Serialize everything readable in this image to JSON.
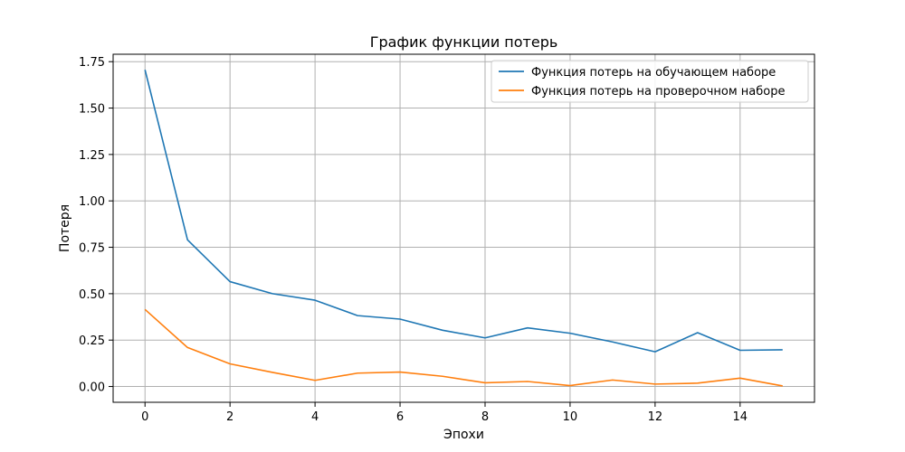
{
  "chart_data": {
    "type": "line",
    "title": "График функции потерь",
    "xlabel": "Эпохи",
    "ylabel": "Потеря",
    "x": [
      0,
      1,
      2,
      3,
      4,
      5,
      6,
      7,
      8,
      9,
      10,
      11,
      12,
      13,
      14,
      15
    ],
    "xlim": [
      -0.75,
      15.75
    ],
    "ylim": [
      -0.085,
      1.79
    ],
    "xticks": [
      "0",
      "2",
      "4",
      "6",
      "8",
      "10",
      "12",
      "14"
    ],
    "yticks": [
      "0.00",
      "0.25",
      "0.50",
      "0.75",
      "1.00",
      "1.25",
      "1.50",
      "1.75"
    ],
    "grid": true,
    "legend_position": "top-right",
    "series": [
      {
        "name": "Функция потерь на обучающем наборе",
        "color": "#1f77b4",
        "values": [
          1.706,
          0.79,
          0.565,
          0.5,
          0.465,
          0.382,
          0.363,
          0.303,
          0.262,
          0.316,
          0.287,
          0.24,
          0.187,
          0.29,
          0.195,
          0.198
        ]
      },
      {
        "name": "Функция потерь на проверочном наборе",
        "color": "#ff7f0e",
        "values": [
          0.415,
          0.21,
          0.122,
          0.076,
          0.033,
          0.072,
          0.078,
          0.055,
          0.02,
          0.027,
          0.005,
          0.035,
          0.013,
          0.018,
          0.045,
          0.003
        ]
      }
    ]
  }
}
